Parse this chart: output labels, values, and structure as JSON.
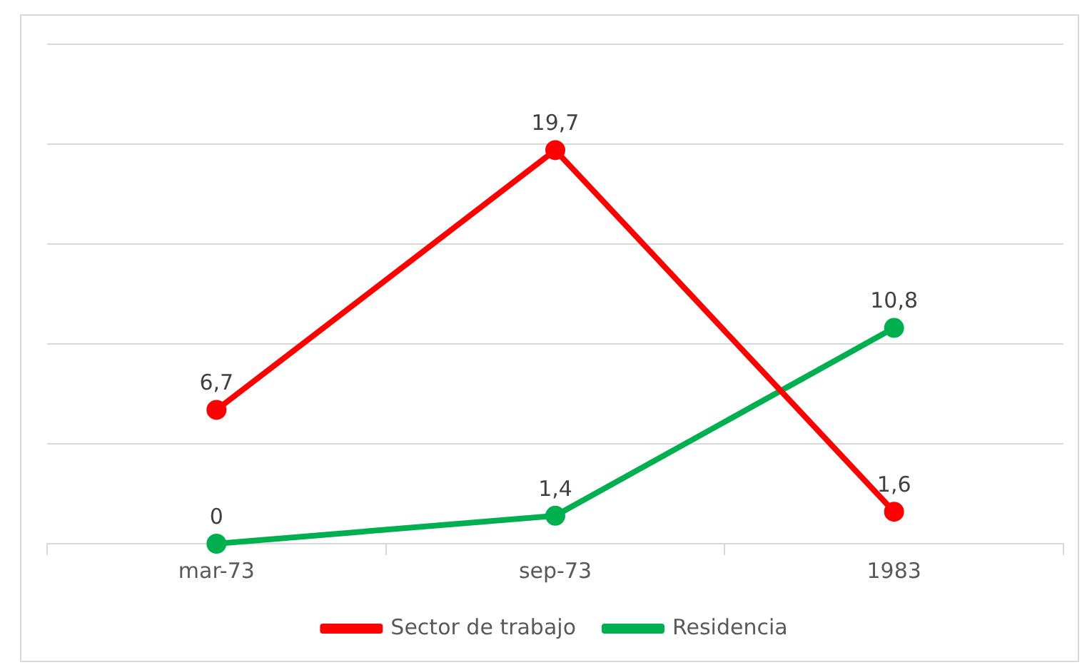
{
  "chart_data": {
    "type": "line",
    "categories": [
      "mar-73",
      "sep-73",
      "1983"
    ],
    "series": [
      {
        "name": "Sector de trabajo",
        "color": "#ff0000",
        "values": [
          6.7,
          19.7,
          1.6
        ],
        "value_labels": [
          "6,7",
          "19,7",
          "1,6"
        ]
      },
      {
        "name": "Residencia",
        "color": "#00b050",
        "values": [
          0,
          1.4,
          10.8
        ],
        "value_labels": [
          "0",
          "1,4",
          "10,8"
        ]
      }
    ],
    "tick_labels": "x",
    "grid": "y",
    "legend": "bottom",
    "marker": "circle",
    "line_style": "solid"
  }
}
